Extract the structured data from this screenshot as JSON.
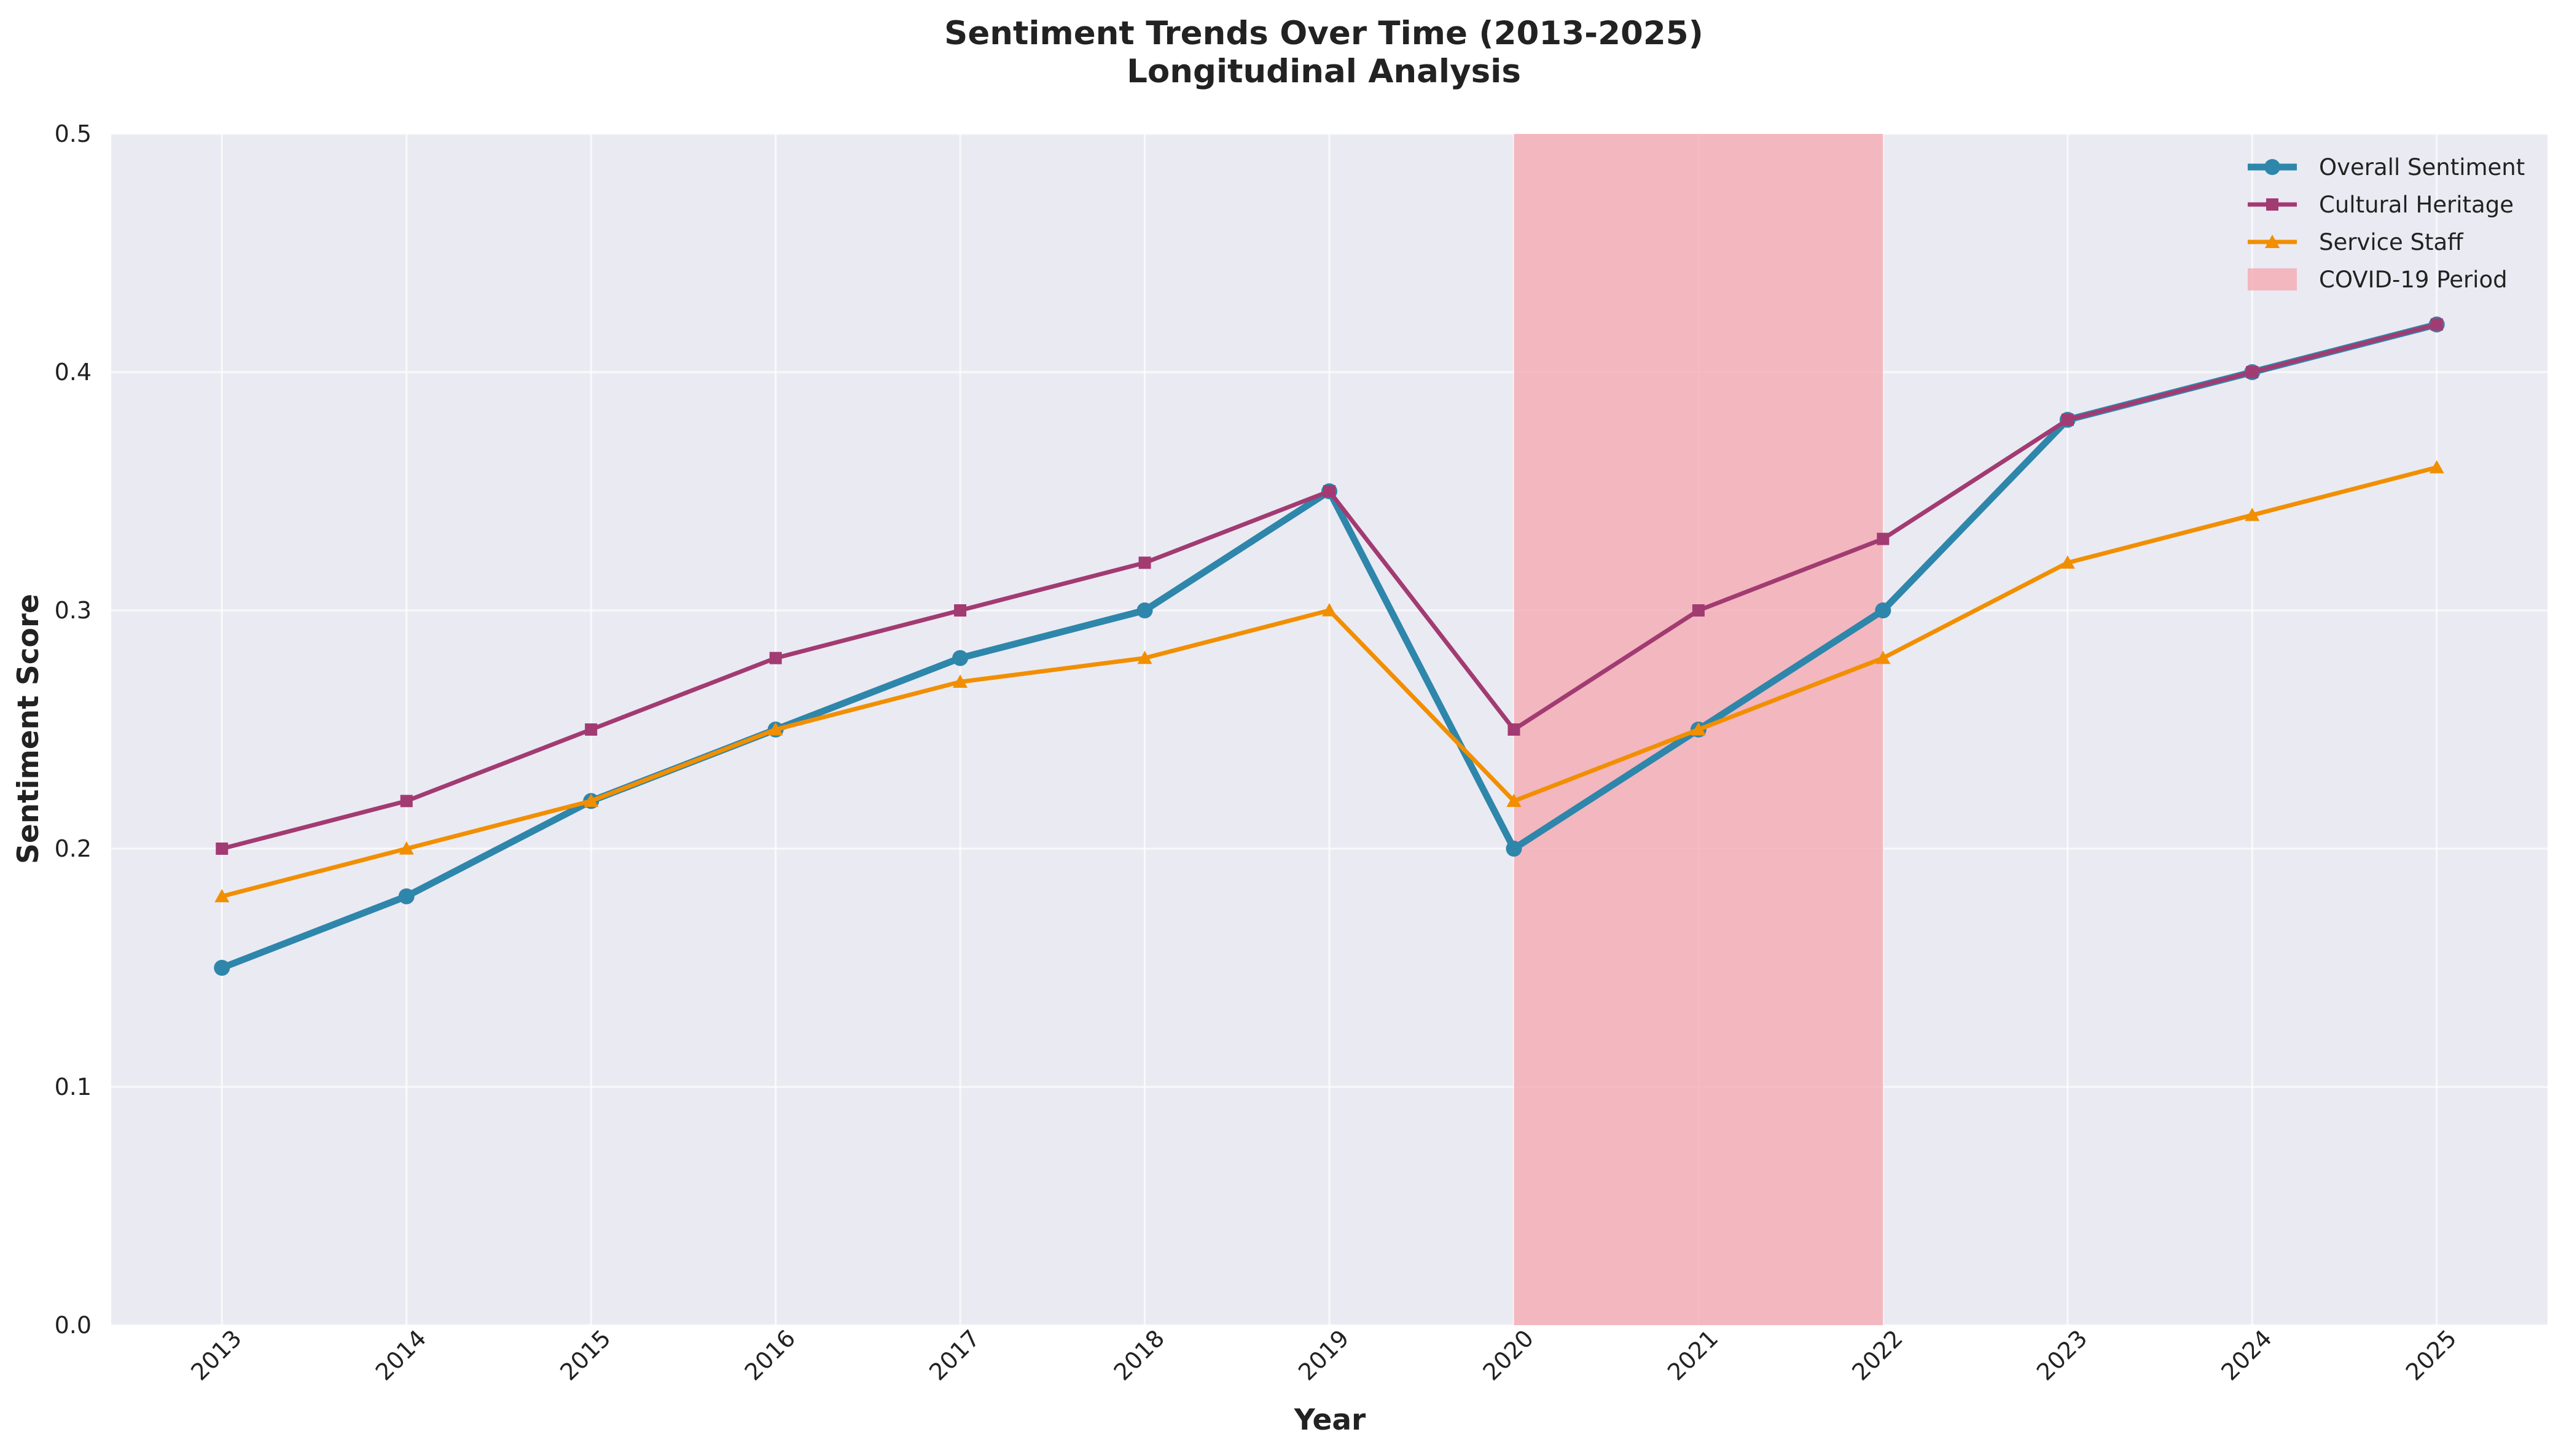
{
  "chart_data": {
    "type": "line",
    "title": "Sentiment Trends Over Time (2013-2025)",
    "subtitle": "Longitudinal Analysis",
    "xlabel": "Year",
    "ylabel": "Sentiment Score",
    "categories": [
      "2013",
      "2014",
      "2015",
      "2016",
      "2017",
      "2018",
      "2019",
      "2020",
      "2021",
      "2022",
      "2023",
      "2024",
      "2025"
    ],
    "ylim": [
      0,
      0.5
    ],
    "yticks": [
      "0.0",
      "0.1",
      "0.2",
      "0.3",
      "0.4",
      "0.5"
    ],
    "grid": true,
    "legend_position": "top-right",
    "series": [
      {
        "name": "Overall Sentiment",
        "color": "#2e86ab",
        "marker": "circle",
        "values": [
          0.15,
          0.18,
          0.22,
          0.25,
          0.28,
          0.3,
          0.35,
          0.2,
          0.25,
          0.3,
          0.38,
          0.4,
          0.42
        ]
      },
      {
        "name": "Cultural Heritage",
        "color": "#a23b72",
        "marker": "square",
        "values": [
          0.2,
          0.22,
          0.25,
          0.28,
          0.3,
          0.32,
          0.35,
          0.25,
          0.3,
          0.33,
          0.38,
          0.4,
          0.42
        ]
      },
      {
        "name": "Service Staff",
        "color": "#f18f01",
        "marker": "triangle",
        "values": [
          0.18,
          0.2,
          0.22,
          0.25,
          0.27,
          0.28,
          0.3,
          0.22,
          0.25,
          0.28,
          0.32,
          0.34,
          0.36
        ]
      }
    ],
    "shaded_region": {
      "label": "COVID-19 Period",
      "x_start": "2020",
      "x_end": "2022",
      "color": "#f4a6ad"
    },
    "background_color": "#eaeaf2"
  }
}
